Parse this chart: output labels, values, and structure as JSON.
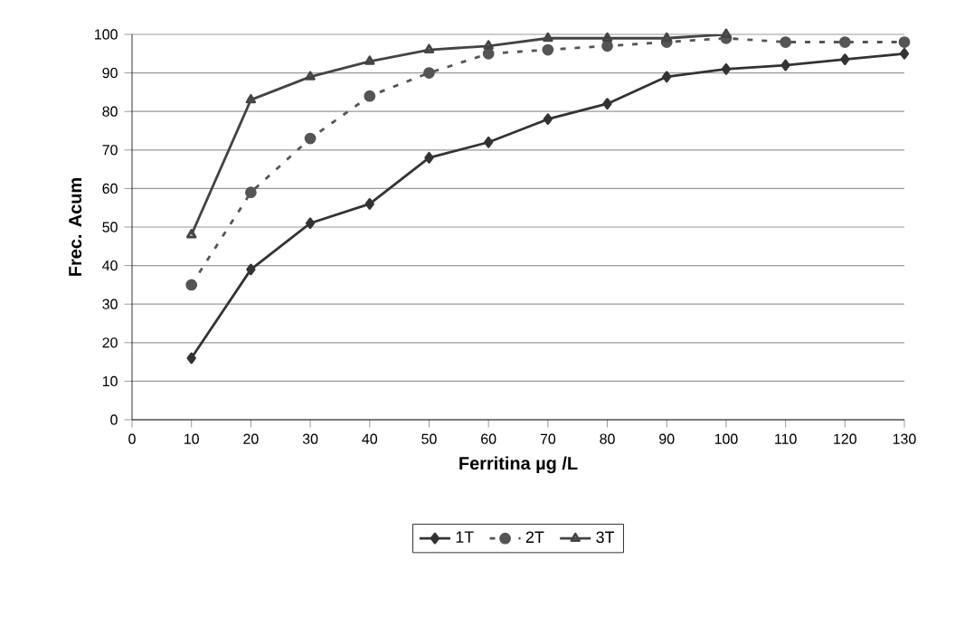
{
  "chart_data": {
    "type": "line",
    "xlabel": "Ferritina µg /L",
    "ylabel": "Frec. Acum",
    "x": [
      10,
      20,
      30,
      40,
      50,
      60,
      70,
      80,
      90,
      100,
      110,
      120,
      130
    ],
    "series": [
      {
        "name": "1T",
        "color": "#333333",
        "marker": "diamond",
        "line_style": "solid",
        "values": [
          16,
          39,
          51,
          56,
          68,
          72,
          78,
          82,
          89,
          91,
          92,
          93.5,
          95
        ]
      },
      {
        "name": "2T",
        "color": "#555555",
        "marker": "circle",
        "line_style": "dashed",
        "values": [
          35,
          59,
          73,
          84,
          90,
          95,
          96,
          97,
          98,
          99,
          98,
          98,
          98
        ]
      },
      {
        "name": "3T",
        "color": "#444444",
        "marker": "triangle",
        "line_style": "solid",
        "values": [
          48,
          83,
          89,
          93,
          96,
          97,
          99,
          99,
          99,
          100,
          null,
          null,
          null
        ]
      }
    ],
    "xlim": [
      0,
      130
    ],
    "ylim": [
      0,
      100
    ],
    "xticks": [
      0,
      10,
      20,
      30,
      40,
      50,
      60,
      70,
      80,
      90,
      100,
      110,
      120,
      130
    ],
    "yticks": [
      0,
      10,
      20,
      30,
      40,
      50,
      60,
      70,
      80,
      90,
      100
    ],
    "grid": "y",
    "legend": "bottom"
  }
}
